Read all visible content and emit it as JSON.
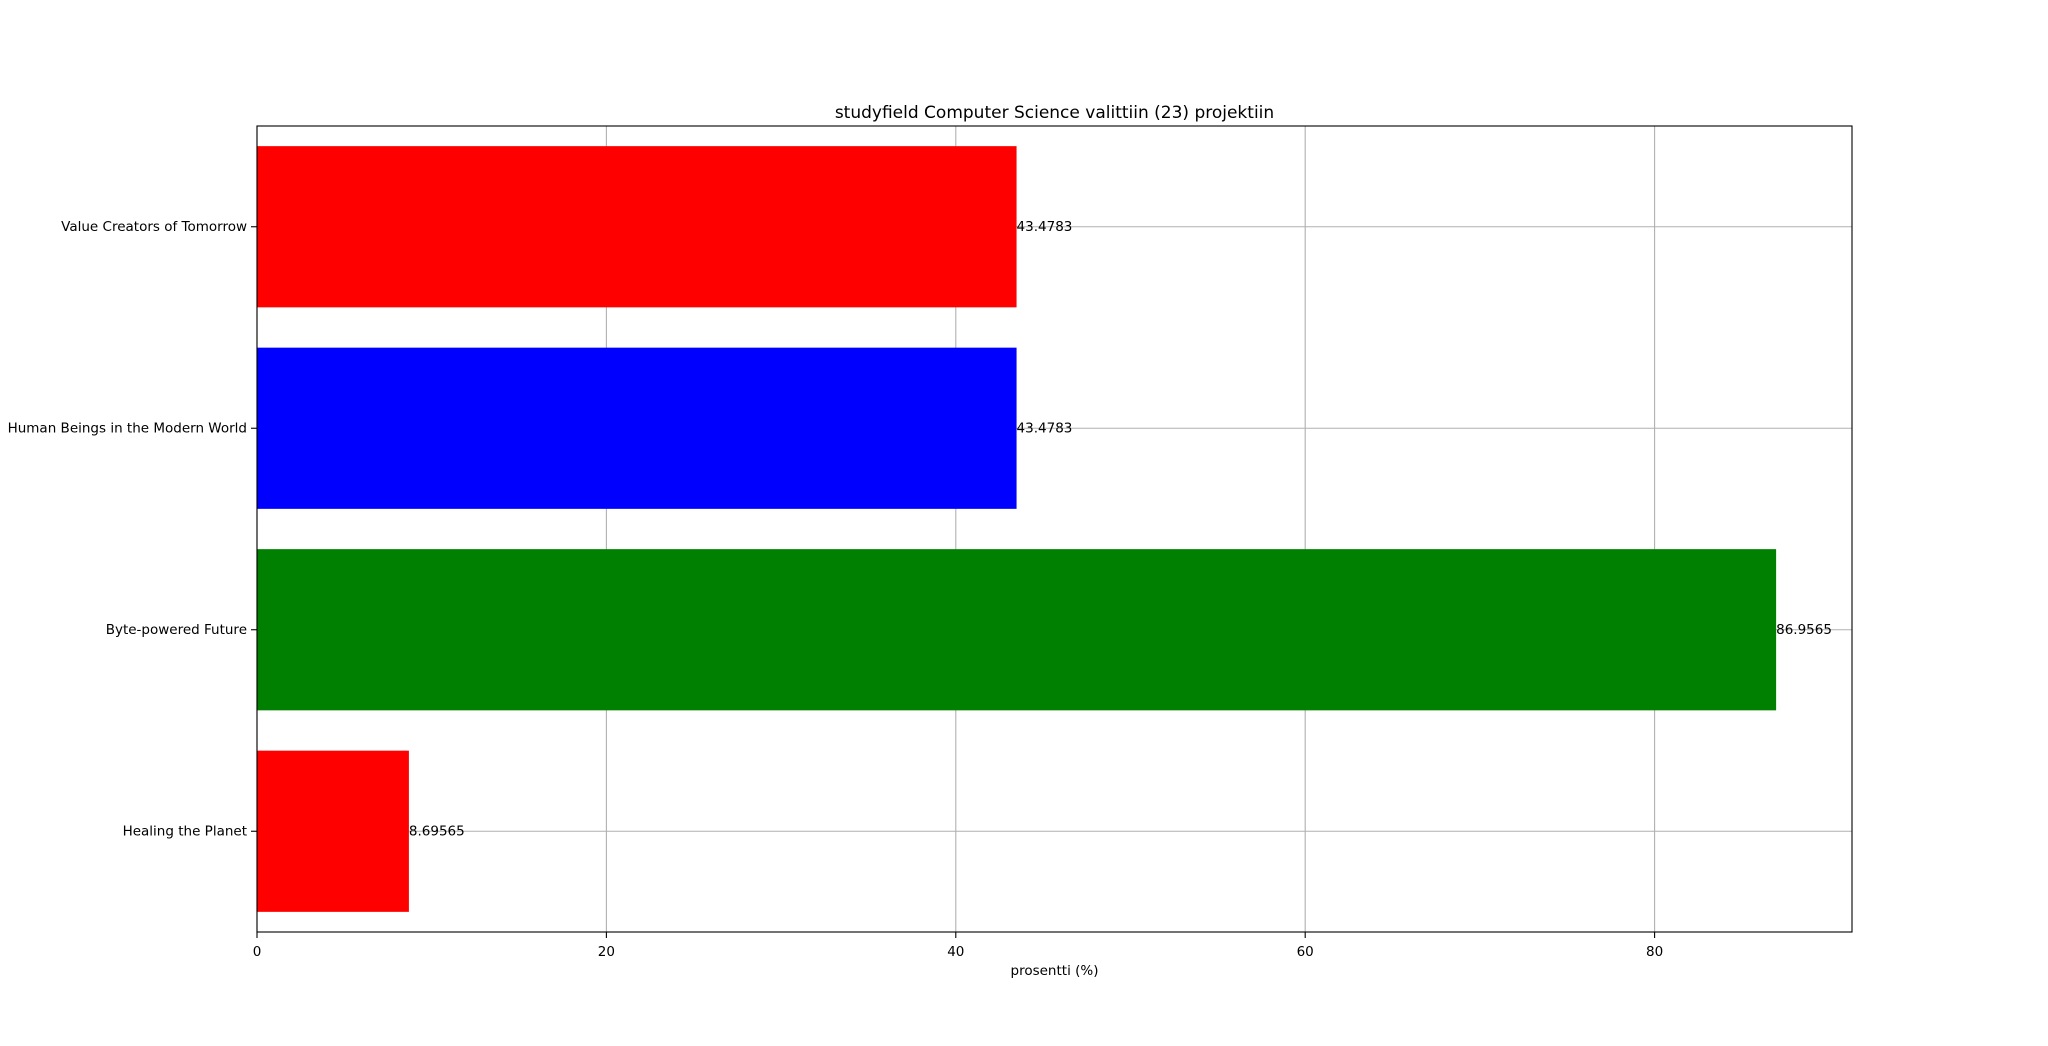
{
  "chart_data": {
    "type": "bar",
    "orientation": "horizontal",
    "title": "studyfield Computer Science valittiin (23) projektiin",
    "xlabel": "prosentti (%)",
    "ylabel": "",
    "categories": [
      "Healing the Planet",
      "Byte-powered Future",
      "Human Beings in the Modern World",
      "Value Creators of Tomorrow"
    ],
    "values": [
      8.69565,
      86.9565,
      43.4783,
      43.4783
    ],
    "value_labels": [
      "8.69565",
      "86.9565",
      "43.4783",
      "43.4783"
    ],
    "colors": [
      "#ff0000",
      "#008000",
      "#0000ff",
      "#ff0000"
    ],
    "xlim": [
      0,
      91.3
    ],
    "xticks": [
      0,
      20,
      40,
      60,
      80
    ],
    "xtick_labels": [
      "0",
      "20",
      "40",
      "60",
      "80"
    ],
    "grid": true,
    "legend": "none"
  }
}
